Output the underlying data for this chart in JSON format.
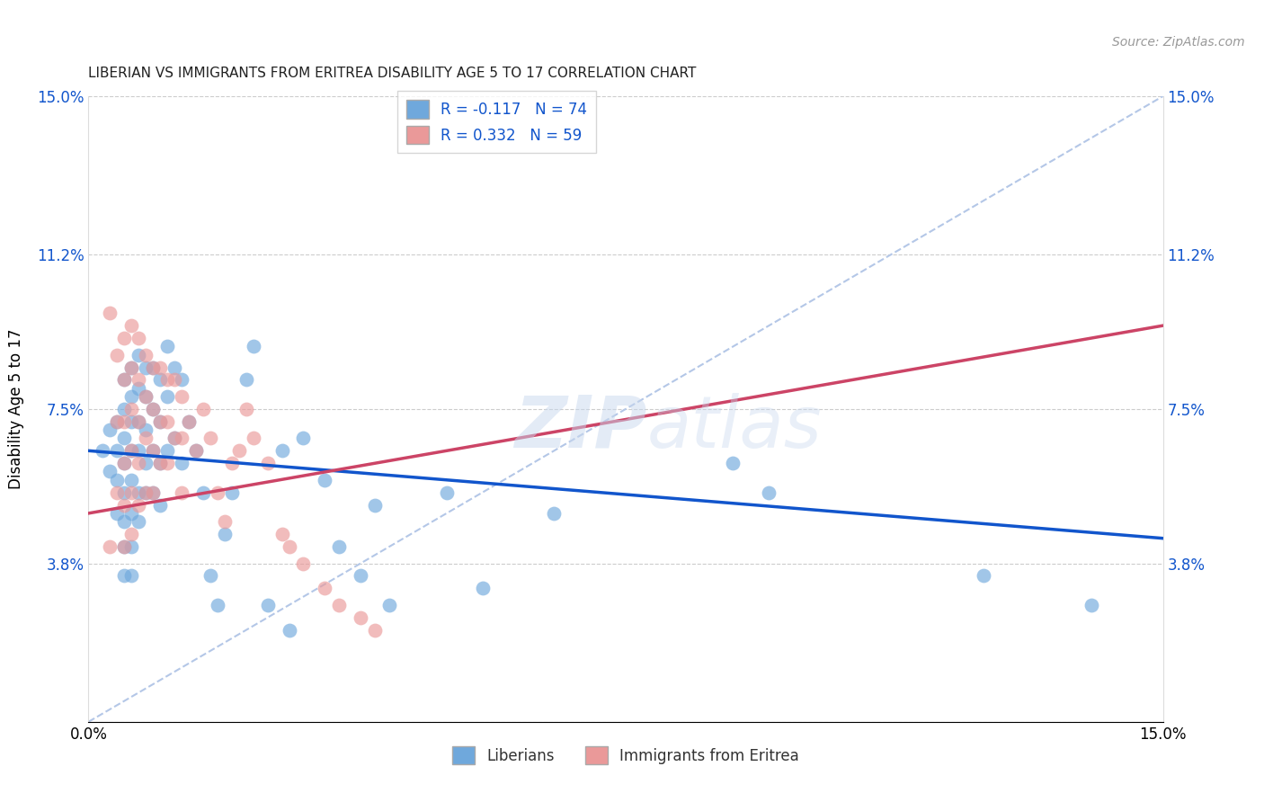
{
  "title": "LIBERIAN VS IMMIGRANTS FROM ERITREA DISABILITY AGE 5 TO 17 CORRELATION CHART",
  "source": "Source: ZipAtlas.com",
  "ylabel": "Disability Age 5 to 17",
  "xmin": 0.0,
  "xmax": 0.15,
  "ymin": 0.0,
  "ymax": 0.15,
  "yticks": [
    0.0,
    0.038,
    0.075,
    0.112,
    0.15
  ],
  "ytick_labels": [
    "",
    "3.8%",
    "7.5%",
    "11.2%",
    "15.0%"
  ],
  "xtick_labels": [
    "0.0%",
    "15.0%"
  ],
  "legend_label1": "R = -0.117   N = 74",
  "legend_label2": "R = 0.332   N = 59",
  "legend_entry1": "Liberians",
  "legend_entry2": "Immigrants from Eritrea",
  "blue_color": "#6fa8dc",
  "pink_color": "#ea9999",
  "blue_line_color": "#1155cc",
  "pink_line_color": "#cc4466",
  "dashed_line_color": "#b4c7e7",
  "background_color": "#ffffff",
  "blue_line_x0": 0.0,
  "blue_line_y0": 0.065,
  "blue_line_x1": 0.15,
  "blue_line_y1": 0.044,
  "pink_line_x0": 0.0,
  "pink_line_y0": 0.05,
  "pink_line_x1": 0.15,
  "pink_line_y1": 0.095,
  "blue_points_x": [
    0.002,
    0.003,
    0.003,
    0.004,
    0.004,
    0.004,
    0.004,
    0.005,
    0.005,
    0.005,
    0.005,
    0.005,
    0.005,
    0.005,
    0.005,
    0.006,
    0.006,
    0.006,
    0.006,
    0.006,
    0.006,
    0.006,
    0.006,
    0.007,
    0.007,
    0.007,
    0.007,
    0.007,
    0.007,
    0.008,
    0.008,
    0.008,
    0.008,
    0.008,
    0.009,
    0.009,
    0.009,
    0.009,
    0.01,
    0.01,
    0.01,
    0.01,
    0.011,
    0.011,
    0.011,
    0.012,
    0.012,
    0.013,
    0.013,
    0.014,
    0.015,
    0.016,
    0.017,
    0.018,
    0.019,
    0.02,
    0.022,
    0.023,
    0.025,
    0.027,
    0.028,
    0.03,
    0.033,
    0.035,
    0.038,
    0.04,
    0.042,
    0.05,
    0.055,
    0.065,
    0.09,
    0.095,
    0.125,
    0.14
  ],
  "blue_points_y": [
    0.065,
    0.07,
    0.06,
    0.072,
    0.065,
    0.058,
    0.05,
    0.082,
    0.075,
    0.068,
    0.062,
    0.055,
    0.048,
    0.042,
    0.035,
    0.085,
    0.078,
    0.072,
    0.065,
    0.058,
    0.05,
    0.042,
    0.035,
    0.088,
    0.08,
    0.072,
    0.065,
    0.055,
    0.048,
    0.085,
    0.078,
    0.07,
    0.062,
    0.055,
    0.085,
    0.075,
    0.065,
    0.055,
    0.082,
    0.072,
    0.062,
    0.052,
    0.09,
    0.078,
    0.065,
    0.085,
    0.068,
    0.082,
    0.062,
    0.072,
    0.065,
    0.055,
    0.035,
    0.028,
    0.045,
    0.055,
    0.082,
    0.09,
    0.028,
    0.065,
    0.022,
    0.068,
    0.058,
    0.042,
    0.035,
    0.052,
    0.028,
    0.055,
    0.032,
    0.05,
    0.062,
    0.055,
    0.035,
    0.028
  ],
  "pink_points_x": [
    0.003,
    0.003,
    0.004,
    0.004,
    0.004,
    0.005,
    0.005,
    0.005,
    0.005,
    0.005,
    0.005,
    0.006,
    0.006,
    0.006,
    0.006,
    0.006,
    0.006,
    0.007,
    0.007,
    0.007,
    0.007,
    0.007,
    0.008,
    0.008,
    0.008,
    0.008,
    0.009,
    0.009,
    0.009,
    0.009,
    0.01,
    0.01,
    0.01,
    0.011,
    0.011,
    0.011,
    0.012,
    0.012,
    0.013,
    0.013,
    0.013,
    0.014,
    0.015,
    0.016,
    0.017,
    0.018,
    0.019,
    0.02,
    0.021,
    0.022,
    0.023,
    0.025,
    0.027,
    0.028,
    0.03,
    0.033,
    0.035,
    0.038,
    0.04
  ],
  "pink_points_y": [
    0.098,
    0.042,
    0.088,
    0.072,
    0.055,
    0.092,
    0.082,
    0.072,
    0.062,
    0.052,
    0.042,
    0.095,
    0.085,
    0.075,
    0.065,
    0.055,
    0.045,
    0.092,
    0.082,
    0.072,
    0.062,
    0.052,
    0.088,
    0.078,
    0.068,
    0.055,
    0.085,
    0.075,
    0.065,
    0.055,
    0.085,
    0.072,
    0.062,
    0.082,
    0.072,
    0.062,
    0.082,
    0.068,
    0.078,
    0.068,
    0.055,
    0.072,
    0.065,
    0.075,
    0.068,
    0.055,
    0.048,
    0.062,
    0.065,
    0.075,
    0.068,
    0.062,
    0.045,
    0.042,
    0.038,
    0.032,
    0.028,
    0.025,
    0.022
  ]
}
